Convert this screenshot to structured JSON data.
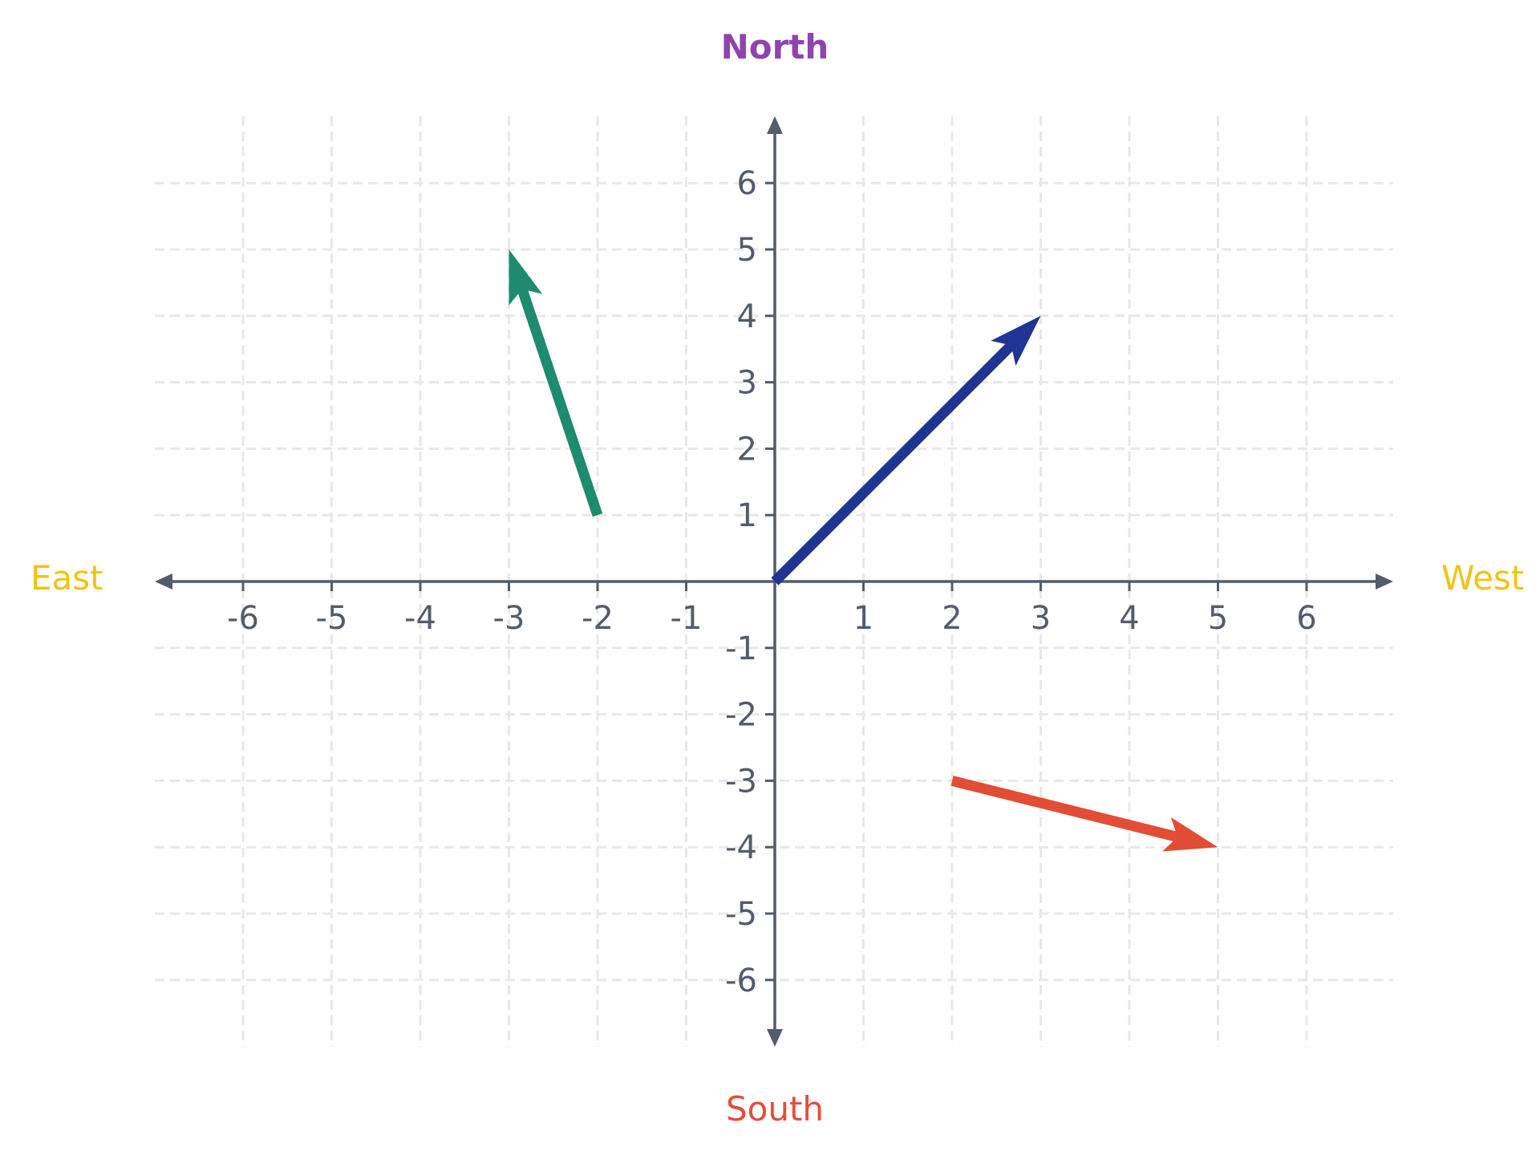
{
  "colors": {
    "axis": "#525c6b",
    "grid": "#e8e8e8",
    "tick_text": "#525c6b"
  },
  "directions": {
    "north": {
      "label": "North",
      "color": "#8e44ad"
    },
    "south": {
      "label": "South",
      "color": "#e74c3c"
    },
    "east": {
      "label": "East",
      "color": "#f1c40f"
    },
    "west": {
      "label": "West",
      "color": "#f1c40f"
    }
  },
  "axes": {
    "x_range": [
      -7,
      7
    ],
    "y_range": [
      -7,
      7
    ],
    "x_ticks": [
      -6,
      -5,
      -4,
      -3,
      -2,
      -1,
      1,
      2,
      3,
      4,
      5,
      6
    ],
    "y_ticks": [
      6,
      5,
      4,
      3,
      2,
      1,
      -1,
      -2,
      -3,
      -4,
      -5,
      -6
    ]
  },
  "vectors": [
    {
      "from": [
        0,
        0
      ],
      "to": [
        3,
        4
      ],
      "color": "#1f3494"
    },
    {
      "from": [
        -2,
        1
      ],
      "to": [
        -3,
        5
      ],
      "color": "#1e8a6e"
    },
    {
      "from": [
        2,
        -3
      ],
      "to": [
        5,
        -4
      ],
      "color": "#e24d35"
    }
  ]
}
